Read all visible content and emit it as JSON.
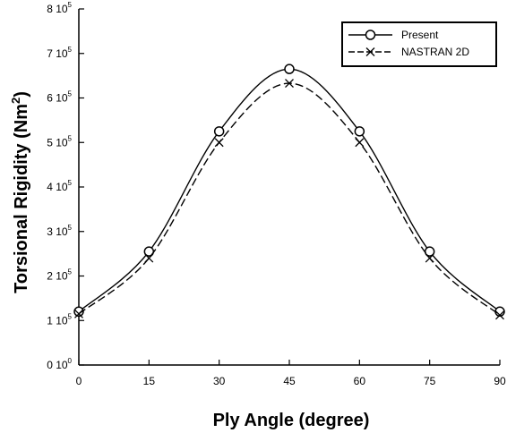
{
  "chart_data": {
    "type": "line",
    "xlabel": "Ply Angle (degree)",
    "ylabel": {
      "main": "Torsional Rigidity (Nm",
      "sup": "2",
      "close": ")"
    },
    "xlim": [
      0,
      90
    ],
    "ylim": [
      0,
      800000
    ],
    "x_ticks": [
      {
        "value": 0,
        "label": "0"
      },
      {
        "value": 15,
        "label": "15"
      },
      {
        "value": 30,
        "label": "30"
      },
      {
        "value": 45,
        "label": "45"
      },
      {
        "value": 60,
        "label": "60"
      },
      {
        "value": 75,
        "label": "75"
      },
      {
        "value": 90,
        "label": "90"
      }
    ],
    "y_ticks": [
      {
        "value": 0,
        "mant": "0 10",
        "exp": "0"
      },
      {
        "value": 100000,
        "mant": "1 10",
        "exp": "5"
      },
      {
        "value": 200000,
        "mant": "2 10",
        "exp": "5"
      },
      {
        "value": 300000,
        "mant": "3 10",
        "exp": "5"
      },
      {
        "value": 400000,
        "mant": "4 10",
        "exp": "5"
      },
      {
        "value": 500000,
        "mant": "5 10",
        "exp": "5"
      },
      {
        "value": 600000,
        "mant": "6 10",
        "exp": "5"
      },
      {
        "value": 700000,
        "mant": "7 10",
        "exp": "5"
      },
      {
        "value": 800000,
        "mant": "8 10",
        "exp": "5"
      }
    ],
    "series": [
      {
        "name": "Present",
        "marker": "circle",
        "line": "solid",
        "x": [
          0,
          15,
          30,
          45,
          60,
          75,
          90
        ],
        "y": [
          120000,
          255000,
          525000,
          665000,
          525000,
          255000,
          120000
        ]
      },
      {
        "name": "NASTRAN 2D",
        "marker": "x",
        "line": "dashed",
        "x": [
          0,
          15,
          30,
          45,
          60,
          75,
          90
        ],
        "y": [
          115000,
          240000,
          500000,
          633000,
          500000,
          240000,
          112000
        ]
      }
    ],
    "legend_position": "top-right",
    "grid": false,
    "colors": {
      "line": "#000000",
      "background": "#ffffff"
    }
  }
}
